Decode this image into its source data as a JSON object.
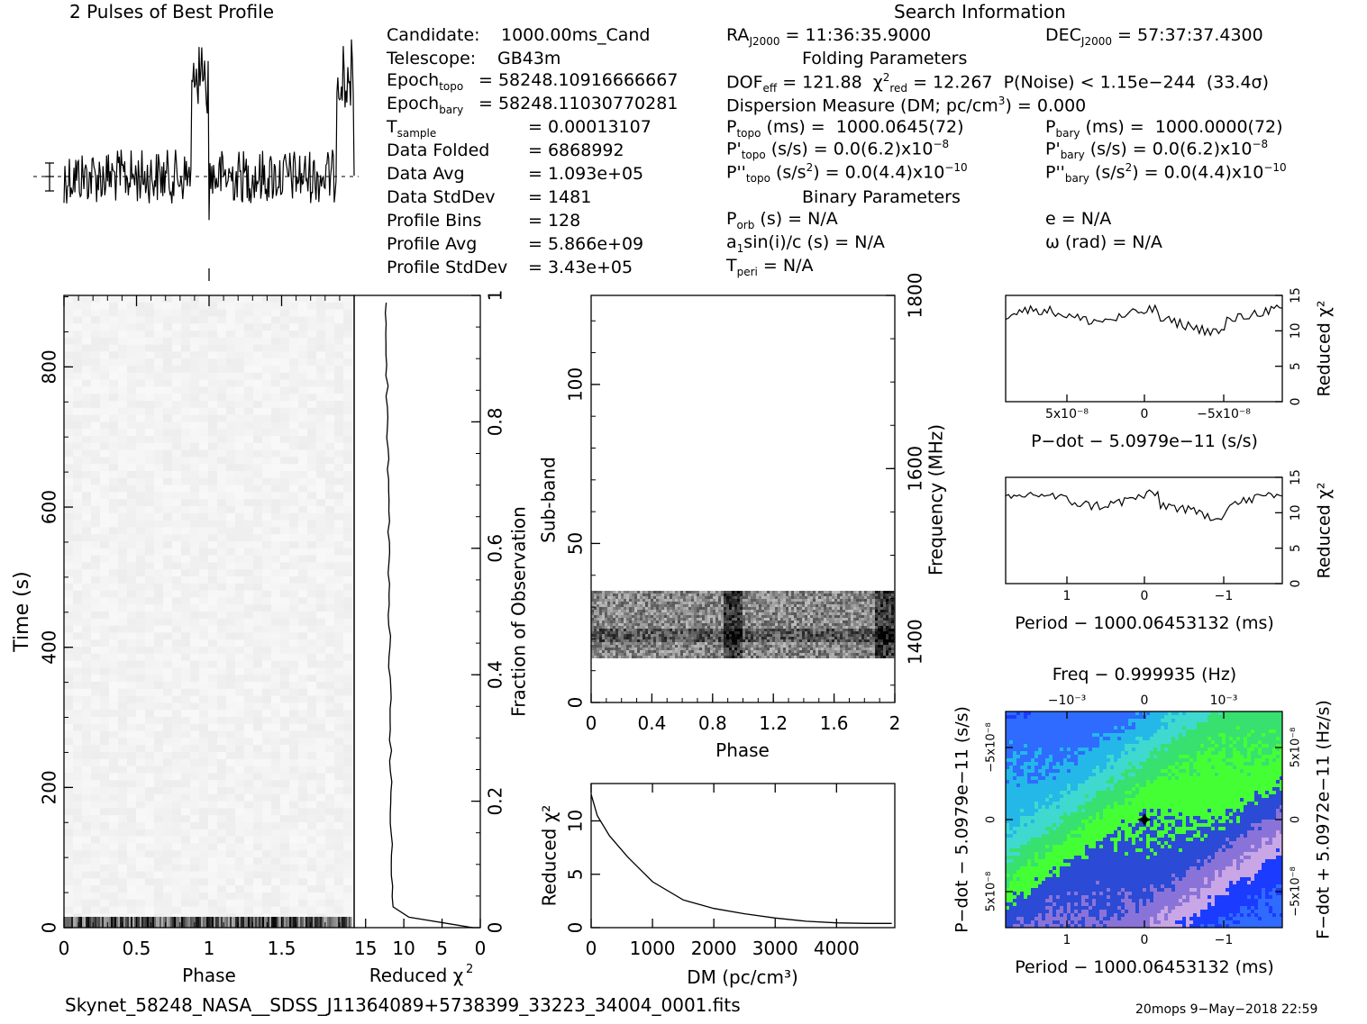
{
  "title": "2 Pulses of Best Profile",
  "search_info_title": "Search Information",
  "folding_title": "Folding Parameters",
  "binary_title": "Binary Parameters",
  "candidate_info": [
    {
      "label": "Candidate:",
      "value": "1000.00ms_Cand"
    },
    {
      "label": "Telescope:",
      "value": "GB43m"
    },
    {
      "label": "Epoch_topo",
      "value": "= 58248.10916666667"
    },
    {
      "label": "Epoch_bary",
      "value": "= 58248.11030770281"
    },
    {
      "label": "T_sample",
      "value": "=   0.00013107"
    },
    {
      "label": "Data Folded",
      "value": "=   6868992"
    },
    {
      "label": "Data Avg",
      "value": "=   1.093e+05"
    },
    {
      "label": "Data StdDev",
      "value": "=   1481"
    },
    {
      "label": "Profile Bins",
      "value": "=   128"
    },
    {
      "label": "Profile Avg",
      "value": "=   5.866e+09"
    },
    {
      "label": "Profile StdDev",
      "value": "=   3.43e+05"
    }
  ],
  "search_info": {
    "ra": "RA_J2000 = 11:36:35.9000",
    "dec": "DEC_J2000 = 57:37:37.4300",
    "dof": "DOF_eff = 121.88",
    "chi2": "χ²_red = 12.267",
    "pnoise": "P(Noise) < 1.15e−244   (33.4σ)",
    "dm": "Dispersion Measure (DM; pc/cm³) = 0.000",
    "ptopo": "P_topo (ms) =  1000.0645(72)",
    "pbary": "P_bary (ms) =  1000.0000(72)",
    "pdtopo": "P'_topo (s/s) = 0.0(6.2)x10⁻⁸",
    "pdbary": "P'_bary (s/s) = 0.0(6.2)x10⁻⁸",
    "pddtopo": "P''_topo (s/s²) = 0.0(4.4)x10⁻¹⁰",
    "pddbary": "P''_bary (s/s²) = 0.0(4.4)x10⁻¹⁰",
    "porb": "P_orb (s) = N/A",
    "e": "e = N/A",
    "a1": "a₁sin(i)/c (s) = N/A",
    "omega": "ω (rad) = N/A",
    "tperi": "T_peri = N/A"
  },
  "footer": {
    "filename": "Skynet_58248_NASA__SDSS_J11364089+5738399_33223_34004_0001.fits",
    "stamp": "20mops   9−May−2018 22:59"
  },
  "chart_data": [
    {
      "type": "line",
      "name": "pulse-profile",
      "title": "2 Pulses of Best Profile",
      "x": "phase 0-2 (two pulses)",
      "description": "Two pulses of noisy profile with spikes near phase 0.93 and 1.93"
    },
    {
      "type": "heatmap",
      "name": "time-phase",
      "xlabel": "Phase",
      "ylabel": "Time (s)",
      "xlim": [
        0,
        2
      ],
      "ylim": [
        0,
        900
      ],
      "x_ticks": [
        "0",
        "0.5",
        "1",
        "1.5"
      ],
      "y_ticks": [
        "0",
        "200",
        "400",
        "600",
        "800"
      ],
      "right_ticks": [
        "0",
        "0.2",
        "0.4",
        "0.6",
        "0.8",
        "1"
      ],
      "right_label": "Fraction of Observation"
    },
    {
      "type": "line",
      "name": "chi2-vs-time",
      "xlabel": "Reduced χ²",
      "x_ticks": [
        "15",
        "10",
        "5",
        "0"
      ]
    },
    {
      "type": "heatmap",
      "name": "subband-phase",
      "xlabel": "Phase",
      "ylabel": "Sub-band",
      "right_label": "Frequency (MHz)",
      "x_ticks": [
        "0",
        "0.4",
        "0.8",
        "1.2",
        "1.6",
        "2"
      ],
      "y_ticks": [
        "0",
        "50",
        "100"
      ],
      "freq_ticks": [
        "1400",
        "1600",
        "1800"
      ]
    },
    {
      "type": "line",
      "name": "chi2-vs-dm",
      "xlabel": "DM (pc/cm³)",
      "ylabel": "Reduced χ²",
      "x_ticks": [
        "0",
        "1000",
        "2000",
        "3000",
        "4000"
      ],
      "y_ticks": [
        "0",
        "5",
        "10"
      ],
      "x": [
        0,
        100,
        300,
        600,
        1000,
        1500,
        2000,
        2500,
        3000,
        3500,
        4000,
        4500,
        4900
      ],
      "y": [
        12.5,
        10.5,
        8.6,
        6.6,
        4.3,
        2.6,
        1.8,
        1.3,
        0.9,
        0.6,
        0.45,
        0.4,
        0.4
      ]
    },
    {
      "type": "line",
      "name": "chi2-vs-pdot",
      "xlabel": "P−dot − 5.0979e−11 (s/s)",
      "ylabel": "Reduced χ²",
      "x_ticks": [
        "5x10⁻⁸",
        "0",
        "−5x10⁻⁸"
      ],
      "y_ticks": [
        "0",
        "5",
        "10",
        "15"
      ]
    },
    {
      "type": "line",
      "name": "chi2-vs-period",
      "xlabel": "Period − 1000.06453132 (ms)",
      "ylabel": "Reduced χ²",
      "x_ticks": [
        "1",
        "0",
        "−1"
      ],
      "y_ticks": [
        "0",
        "5",
        "10",
        "15"
      ]
    },
    {
      "type": "heatmap",
      "name": "pdot-period",
      "top_label": "Freq − 0.999935 (Hz)",
      "top_ticks": [
        "−10⁻³",
        "0",
        "10⁻³"
      ],
      "xlabel": "Period − 1000.06453132 (ms)",
      "x_ticks": [
        "1",
        "0",
        "−1"
      ],
      "ylabel": "P−dot − 5.0979e−11 (s/s)",
      "y_ticks": [
        "−5x10⁻⁸",
        "0",
        "5x10⁻⁸"
      ],
      "right_label": "F−dot + 5.0972e−11 (Hz/s)",
      "right_ticks": [
        "5x10⁻⁸",
        "0",
        "−5x10⁻⁸"
      ]
    }
  ]
}
